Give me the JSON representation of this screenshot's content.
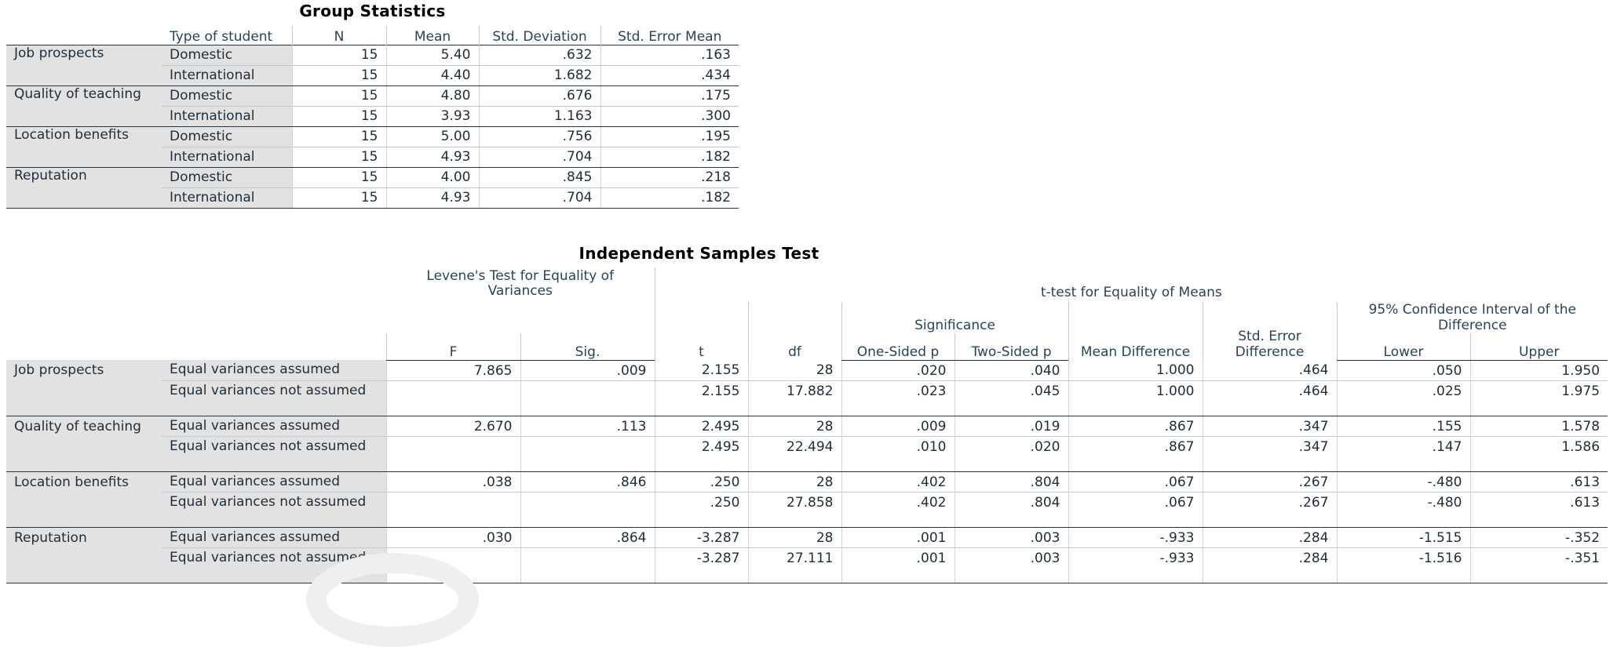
{
  "group_statistics": {
    "title": "Group Statistics",
    "headers": [
      "Type of student",
      "N",
      "Mean",
      "Std. Deviation",
      "Std. Error Mean"
    ],
    "groups": [
      {
        "variable": "Job prospects",
        "rows": [
          {
            "type": "Domestic",
            "n": "15",
            "mean": "5.40",
            "sd": "0.632",
            "se": ".163"
          },
          {
            "type": "International",
            "n": "15",
            "mean": "4.40",
            "sd": "1.682",
            "se": ".434"
          }
        ]
      },
      {
        "variable": "Quality of teaching",
        "rows": [
          {
            "type": "Domestic",
            "n": "15",
            "mean": "4.80",
            "sd": ".676",
            "se": ".175"
          },
          {
            "type": "International",
            "n": "15",
            "mean": "3.93",
            "sd": "1.163",
            "se": ".300"
          }
        ]
      },
      {
        "variable": "Location benefits",
        "rows": [
          {
            "type": "Domestic",
            "n": "15",
            "mean": "5.00",
            "sd": ".756",
            "se": ".195"
          },
          {
            "type": "International",
            "n": "15",
            "mean": "4.93",
            "sd": ".704",
            "se": ".182"
          }
        ]
      },
      {
        "variable": "Reputation",
        "rows": [
          {
            "type": "Domestic",
            "n": "15",
            "mean": "4.00",
            "sd": ".845",
            "se": ".218"
          },
          {
            "type": "International",
            "n": "15",
            "mean": "4.93",
            "sd": ".704",
            "se": ".182"
          }
        ]
      }
    ]
  },
  "independent_samples": {
    "title": "Independent Samples Test",
    "levene_header": "Levene's Test for Equality of Variances",
    "ttest_header": "t-test for Equality of Means",
    "significance_header": "Significance",
    "ci_header": "95% Confidence Interval of the Difference",
    "col": {
      "f": "F",
      "sig": "Sig.",
      "t": "t",
      "df": "df",
      "one": "One-Sided p",
      "two": "Two-Sided p",
      "md": "Mean Difference",
      "sed": "Std. Error Difference",
      "lower": "Lower",
      "upper": "Upper"
    },
    "groups": [
      {
        "variable": "Job prospects",
        "rows": [
          {
            "label": "Equal variances assumed",
            "f": "7.865",
            "sig": ".009",
            "t": "2.155",
            "df": "28",
            "one": ".020",
            "two": ".040",
            "md": "1.000",
            "sed": ".464",
            "lower": ".050",
            "upper": "1.950"
          },
          {
            "label": "Equal variances not assumed",
            "f": "",
            "sig": "",
            "t": "2.155",
            "df": "17.882",
            "one": ".023",
            "two": ".045",
            "md": "1.000",
            "sed": ".464",
            "lower": ".025",
            "upper": "1.975"
          }
        ]
      },
      {
        "variable": "Quality of teaching",
        "rows": [
          {
            "label": "Equal variances assumed",
            "f": "2.670",
            "sig": ".113",
            "t": "2.495",
            "df": "28",
            "one": ".009",
            "two": ".019",
            "md": ".867",
            "sed": ".347",
            "lower": ".155",
            "upper": "1.578"
          },
          {
            "label": "Equal variances not assumed",
            "f": "",
            "sig": "",
            "t": "2.495",
            "df": "22.494",
            "one": ".010",
            "two": ".020",
            "md": ".867",
            "sed": ".347",
            "lower": ".147",
            "upper": "1.586"
          }
        ]
      },
      {
        "variable": "Location benefits",
        "rows": [
          {
            "label": "Equal variances assumed",
            "f": ".038",
            "sig": ".846",
            "t": ".250",
            "df": "28",
            "one": ".402",
            "two": ".804",
            "md": ".067",
            "sed": ".267",
            "lower": "-.480",
            "upper": ".613"
          },
          {
            "label": "Equal variances not assumed",
            "f": "",
            "sig": "",
            "t": ".250",
            "df": "27.858",
            "one": ".402",
            "two": ".804",
            "md": ".067",
            "sed": ".267",
            "lower": "-.480",
            "upper": ".613"
          }
        ]
      },
      {
        "variable": "Reputation",
        "rows": [
          {
            "label": "Equal variances assumed",
            "f": ".030",
            "sig": ".864",
            "t": "-3.287",
            "df": "28",
            "one": ".001",
            "two": ".003",
            "md": "-.933",
            "sed": ".284",
            "lower": "-1.515",
            "upper": "-.352"
          },
          {
            "label": "Equal variances not assumed",
            "f": "",
            "sig": "",
            "t": "-3.287",
            "df": "27.111",
            "one": ".001",
            "two": ".003",
            "md": "-.933",
            "sed": ".284",
            "lower": "-1.516",
            "upper": "-.351"
          }
        ]
      }
    ]
  }
}
